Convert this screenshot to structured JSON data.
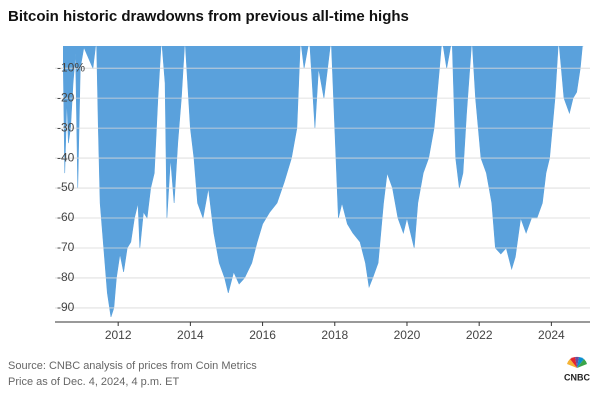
{
  "chart_data": {
    "type": "area",
    "title": "Bitcoin historic drawdowns from previous all-time highs",
    "source": "Source: CNBC analysis of prices from Coin Metrics",
    "note": "Price as of Dec. 4, 2024, 4 p.m. ET",
    "logo": "CNBC",
    "color": "#5aa1dc",
    "grid": true,
    "xlim": [
      2010.25,
      2025.07
    ],
    "ylim": [
      -94.7,
      -2.6
    ],
    "xticks": [
      2012,
      2014,
      2016,
      2018,
      2020,
      2022,
      2024
    ],
    "yticks": [
      {
        "value": -10,
        "label": "-10%"
      },
      -20,
      -30,
      -40,
      -50,
      -60,
      -70,
      -80,
      -90
    ],
    "x": [
      2010.48,
      2010.52,
      2010.58,
      2010.62,
      2010.68,
      2010.75,
      2010.82,
      2010.88,
      2010.95,
      2011.05,
      2011.3,
      2011.4,
      2011.45,
      2011.5,
      2011.6,
      2011.7,
      2011.8,
      2011.88,
      2011.95,
      2012.05,
      2012.15,
      2012.25,
      2012.35,
      2012.45,
      2012.55,
      2012.6,
      2012.7,
      2012.8,
      2012.9,
      2013.0,
      2013.1,
      2013.2,
      2013.3,
      2013.35,
      2013.45,
      2013.55,
      2013.65,
      2013.75,
      2013.85,
      2014.0,
      2014.1,
      2014.2,
      2014.35,
      2014.5,
      2014.65,
      2014.8,
      2014.95,
      2015.05,
      2015.2,
      2015.35,
      2015.5,
      2015.7,
      2015.85,
      2016.0,
      2016.2,
      2016.4,
      2016.6,
      2016.8,
      2016.95,
      2017.05,
      2017.15,
      2017.3,
      2017.45,
      2017.55,
      2017.7,
      2017.9,
      2018.0,
      2018.1,
      2018.2,
      2018.35,
      2018.5,
      2018.7,
      2018.85,
      2018.95,
      2019.05,
      2019.2,
      2019.35,
      2019.45,
      2019.6,
      2019.75,
      2019.9,
      2020.0,
      2020.2,
      2020.3,
      2020.45,
      2020.6,
      2020.75,
      2020.9,
      2020.97,
      2021.1,
      2021.25,
      2021.35,
      2021.45,
      2021.55,
      2021.65,
      2021.8,
      2021.9,
      2022.05,
      2022.2,
      2022.35,
      2022.45,
      2022.6,
      2022.75,
      2022.9,
      2023.0,
      2023.15,
      2023.3,
      2023.45,
      2023.6,
      2023.75,
      2023.85,
      2023.95,
      2024.1,
      2024.2,
      2024.35,
      2024.5,
      2024.6,
      2024.7,
      2024.8,
      2024.88
    ],
    "values": [
      -10,
      -45,
      -20,
      -35,
      -30,
      -15,
      -5,
      -50,
      -10,
      -3,
      -10,
      0,
      -30,
      -55,
      -70,
      -85,
      -93,
      -90,
      -80,
      -72,
      -78,
      -70,
      -68,
      -60,
      -55,
      -70,
      -58,
      -60,
      -50,
      -45,
      -20,
      0,
      -15,
      -60,
      -40,
      -55,
      -35,
      -20,
      0,
      -30,
      -40,
      -55,
      -60,
      -50,
      -65,
      -75,
      -80,
      -85,
      -78,
      -82,
      -80,
      -75,
      -68,
      -62,
      -58,
      -55,
      -48,
      -40,
      -30,
      0,
      -10,
      0,
      -30,
      -10,
      -20,
      0,
      -30,
      -60,
      -55,
      -62,
      -65,
      -68,
      -75,
      -83,
      -80,
      -75,
      -55,
      -45,
      -50,
      -60,
      -65,
      -60,
      -70,
      -55,
      -45,
      -40,
      -30,
      -10,
      0,
      -10,
      0,
      -40,
      -50,
      -45,
      -25,
      0,
      -20,
      -40,
      -45,
      -55,
      -70,
      -72,
      -70,
      -77,
      -73,
      -60,
      -65,
      -60,
      -60,
      -55,
      -45,
      -40,
      -20,
      0,
      -20,
      -25,
      -20,
      -18,
      -10,
      0
    ]
  }
}
